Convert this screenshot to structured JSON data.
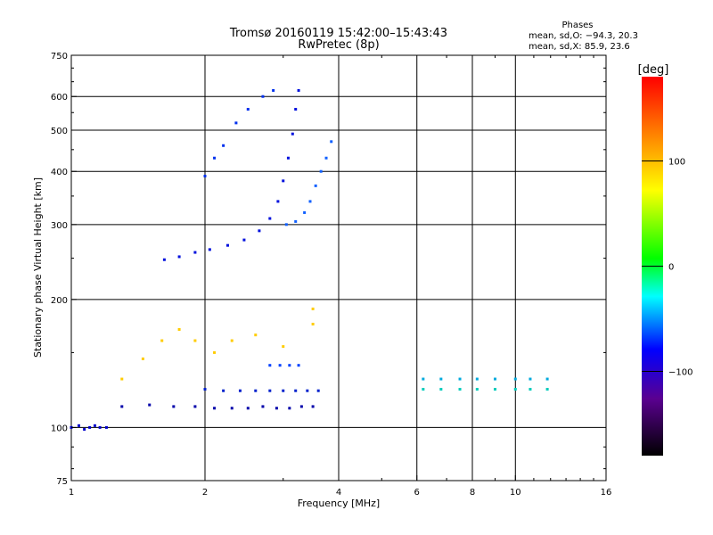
{
  "chart_data": {
    "type": "scatter",
    "title": "Tromsø 20160119 15:42:00–15:43:43",
    "subtitle": "RwPretec (8p)",
    "xlabel": "Frequency [MHz]",
    "ylabel": "Stationary phase Virtual Height [km]",
    "x_scale": "log",
    "y_scale": "log",
    "xlim": [
      1,
      16
    ],
    "ylim": [
      75,
      750
    ],
    "x_ticks": [
      1,
      2,
      4,
      6,
      8,
      10,
      16
    ],
    "x_tick_labels": [
      "1",
      "2",
      "4",
      "6",
      "8",
      "10",
      "16"
    ],
    "y_ticks": [
      75,
      100,
      200,
      300,
      400,
      500,
      600,
      750
    ],
    "y_tick_labels": [
      "75",
      "100",
      "200",
      "300",
      "400",
      "500",
      "600",
      "750"
    ],
    "grid": true,
    "colorbar": {
      "label": "[deg]",
      "range": [
        -180,
        180
      ],
      "ticks": [
        -100,
        0,
        100
      ],
      "tick_labels": [
        "−100",
        "0",
        "100"
      ]
    },
    "stats": {
      "heading": "Phases",
      "line_o": "mean, sd,O: −94.3, 20.3",
      "line_x": "mean, sd,X:  85.9, 23.6"
    },
    "series": [
      {
        "values": [
          [
            1.0,
            100
          ],
          [
            1.04,
            101
          ],
          [
            1.07,
            99
          ],
          [
            1.1,
            100
          ],
          [
            1.13,
            101
          ],
          [
            1.16,
            100
          ],
          [
            1.2,
            100
          ]
        ]
      },
      {
        "values": [
          [
            1.62,
            248
          ],
          [
            1.75,
            252
          ],
          [
            1.9,
            258
          ],
          [
            2.05,
            262
          ],
          [
            2.25,
            268
          ],
          [
            2.45,
            276
          ],
          [
            2.65,
            290
          ],
          [
            2.8,
            310
          ],
          [
            2.92,
            340
          ],
          [
            3.0,
            380
          ],
          [
            3.08,
            430
          ],
          [
            3.15,
            490
          ],
          [
            3.2,
            560
          ],
          [
            3.25,
            620
          ]
        ]
      },
      {
        "values": [
          [
            2.0,
            390
          ],
          [
            2.1,
            430
          ],
          [
            2.2,
            460
          ],
          [
            2.35,
            520
          ],
          [
            2.5,
            560
          ],
          [
            2.7,
            600
          ],
          [
            2.85,
            620
          ]
        ]
      },
      {
        "values": [
          [
            3.05,
            300
          ],
          [
            3.2,
            305
          ],
          [
            3.35,
            320
          ],
          [
            3.45,
            340
          ],
          [
            3.55,
            370
          ],
          [
            3.65,
            400
          ],
          [
            3.75,
            430
          ],
          [
            3.85,
            470
          ]
        ]
      },
      {
        "values": [
          [
            1.3,
            112
          ],
          [
            1.5,
            113
          ],
          [
            1.7,
            112
          ],
          [
            1.9,
            112
          ],
          [
            2.1,
            111
          ],
          [
            2.3,
            111
          ],
          [
            2.5,
            111
          ],
          [
            2.7,
            112
          ],
          [
            2.9,
            111
          ],
          [
            3.1,
            111
          ],
          [
            3.3,
            112
          ],
          [
            3.5,
            112
          ]
        ]
      },
      {
        "values": [
          [
            2.0,
            123
          ],
          [
            2.2,
            122
          ],
          [
            2.4,
            122
          ],
          [
            2.6,
            122
          ],
          [
            2.8,
            122
          ],
          [
            3.0,
            122
          ],
          [
            3.2,
            122
          ],
          [
            3.4,
            122
          ],
          [
            3.6,
            122
          ]
        ]
      },
      {
        "values": [
          [
            2.8,
            140
          ],
          [
            2.95,
            140
          ],
          [
            3.1,
            140
          ],
          [
            3.25,
            140
          ]
        ]
      },
      {
        "values": [
          [
            6.2,
            130
          ],
          [
            6.8,
            130
          ],
          [
            7.5,
            130
          ],
          [
            8.2,
            130
          ],
          [
            9.0,
            130
          ],
          [
            10.0,
            130
          ],
          [
            10.8,
            130
          ],
          [
            11.8,
            130
          ]
        ]
      },
      {
        "values": [
          [
            6.2,
            123
          ],
          [
            6.8,
            123
          ],
          [
            7.5,
            123
          ],
          [
            8.2,
            123
          ],
          [
            9.0,
            123
          ],
          [
            10.0,
            123
          ],
          [
            10.8,
            123
          ],
          [
            11.8,
            123
          ]
        ]
      },
      {
        "values": [
          [
            1.3,
            130
          ],
          [
            1.45,
            145
          ],
          [
            1.6,
            160
          ],
          [
            1.75,
            170
          ],
          [
            1.9,
            160
          ],
          [
            2.1,
            150
          ],
          [
            2.3,
            160
          ],
          [
            2.6,
            165
          ],
          [
            3.0,
            155
          ],
          [
            3.5,
            175
          ],
          [
            3.5,
            190
          ]
        ]
      }
    ]
  }
}
